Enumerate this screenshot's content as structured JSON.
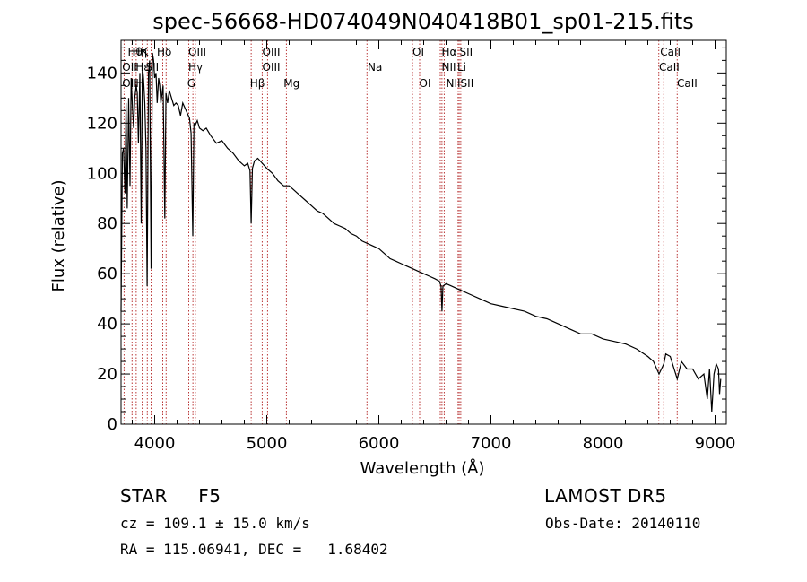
{
  "chart_data": {
    "type": "line",
    "title": "spec-56668-HD074049N040418B01_sp01-215.fits",
    "xlabel": "Wavelength (Å)",
    "ylabel": "Flux (relative)",
    "xlim": [
      3700,
      9100
    ],
    "ylim": [
      0,
      153
    ],
    "x_ticks": [
      4000,
      5000,
      6000,
      7000,
      8000,
      9000
    ],
    "x_tick_labels": [
      "4000",
      "5000",
      "6000",
      "7000",
      "8000",
      "9000"
    ],
    "y_ticks": [
      0,
      20,
      40,
      60,
      80,
      100,
      120,
      140
    ],
    "y_tick_labels": [
      "0",
      "20",
      "40",
      "60",
      "80",
      "100",
      "120",
      "140"
    ],
    "grid": false,
    "series": [
      {
        "color": "#000000",
        "x": [
          3700,
          3712,
          3722,
          3735,
          3745,
          3755,
          3768,
          3780,
          3790,
          3800,
          3812,
          3822,
          3835,
          3845,
          3855,
          3868,
          3880,
          3890,
          3900,
          3912,
          3922,
          3933,
          3945,
          3955,
          3968,
          3980,
          3990,
          4000,
          4012,
          4022,
          4035,
          4045,
          4055,
          4075,
          4090,
          4101,
          4115,
          4130,
          4150,
          4170,
          4190,
          4210,
          4230,
          4250,
          4270,
          4290,
          4310,
          4325,
          4340,
          4350,
          4360,
          4380,
          4400,
          4430,
          4460,
          4500,
          4550,
          4600,
          4650,
          4700,
          4750,
          4800,
          4830,
          4850,
          4861,
          4872,
          4890,
          4920,
          4960,
          5000,
          5050,
          5100,
          5150,
          5200,
          5250,
          5300,
          5350,
          5400,
          5450,
          5500,
          5550,
          5600,
          5650,
          5700,
          5750,
          5800,
          5850,
          5900,
          5950,
          6000,
          6050,
          6100,
          6150,
          6200,
          6250,
          6300,
          6350,
          6400,
          6450,
          6500,
          6540,
          6555,
          6563,
          6572,
          6600,
          6650,
          6700,
          6750,
          6800,
          6900,
          7000,
          7100,
          7200,
          7300,
          7400,
          7500,
          7600,
          7700,
          7800,
          7900,
          8000,
          8100,
          8200,
          8300,
          8400,
          8450,
          8500,
          8542,
          8560,
          8600,
          8662,
          8700,
          8750,
          8800,
          8850,
          8900,
          8930,
          8950,
          8970,
          8990,
          9010,
          9030,
          9040,
          9050
        ],
        "y": [
          45,
          108,
          110,
          92,
          128,
          86,
          130,
          95,
          138,
          128,
          118,
          130,
          135,
          132,
          112,
          140,
          80,
          143,
          138,
          128,
          110,
          55,
          140,
          145,
          62,
          148,
          145,
          138,
          140,
          128,
          138,
          135,
          128,
          135,
          82,
          132,
          128,
          133,
          130,
          127,
          128,
          127,
          123,
          128,
          126,
          124,
          122,
          116,
          75,
          120,
          119,
          121,
          118,
          117,
          118,
          115,
          112,
          113,
          110,
          108,
          105,
          103,
          104,
          101,
          80,
          102,
          105,
          106,
          104,
          102,
          100,
          97,
          95,
          95,
          93,
          91,
          89,
          87,
          85,
          84,
          82,
          80,
          79,
          78,
          76,
          75,
          73,
          72,
          71,
          70,
          68,
          66,
          65,
          64,
          63,
          62,
          61,
          60,
          59,
          58,
          57,
          55,
          45,
          55,
          56,
          55,
          54,
          53,
          52,
          50,
          48,
          47,
          46,
          45,
          43,
          42,
          40,
          38,
          36,
          36,
          34,
          33,
          32,
          30,
          27,
          25,
          20,
          24,
          28,
          27,
          18,
          25,
          22,
          22,
          18,
          20,
          10,
          22,
          5,
          20,
          24,
          22,
          12,
          18
        ]
      }
    ],
    "lines": [
      {
        "x": 3727,
        "label": "OII"
      },
      {
        "x": 3798,
        "label": "Hθ"
      },
      {
        "x": 3835,
        "label": "Hη"
      },
      {
        "x": 3889,
        "label": "Hζ"
      },
      {
        "x": 3934,
        "label": "K"
      },
      {
        "x": 3969,
        "label": "H"
      },
      {
        "x": 3970,
        "label": "Hε"
      },
      {
        "x": 4102,
        "label": "Hδ"
      },
      {
        "x": 4072,
        "label": "SII"
      },
      {
        "x": 4304,
        "label": "G"
      },
      {
        "x": 4341,
        "label": "Hγ"
      },
      {
        "x": 4363,
        "label": "OIII"
      },
      {
        "x": 4861,
        "label": "Hβ"
      },
      {
        "x": 4959,
        "label": "OIII"
      },
      {
        "x": 5007,
        "label": "OIII"
      },
      {
        "x": 5175,
        "label": "Mg"
      },
      {
        "x": 5894,
        "label": "Na"
      },
      {
        "x": 6300,
        "label": "OI"
      },
      {
        "x": 6364,
        "label": "OI"
      },
      {
        "x": 6548,
        "label": "NII"
      },
      {
        "x": 6563,
        "label": "Hα"
      },
      {
        "x": 6583,
        "label": "NII"
      },
      {
        "x": 6707,
        "label": "Li"
      },
      {
        "x": 6717,
        "label": "SII"
      },
      {
        "x": 6731,
        "label": "SII"
      },
      {
        "x": 8498,
        "label": "CaII"
      },
      {
        "x": 8542,
        "label": "CaII"
      },
      {
        "x": 8662,
        "label": "CaII"
      }
    ],
    "line_label_rows": [
      {
        "row": 1,
        "items": [
          {
            "x": 3760,
            "label": "Hθ"
          },
          {
            "x": 3800,
            "label": "Hη"
          },
          {
            "x": 3880,
            "label": "K"
          },
          {
            "x": 4020,
            "label": "Hδ"
          },
          {
            "x": 4300,
            "label": "OIII"
          },
          {
            "x": 4960,
            "label": "OIII"
          },
          {
            "x": 6300,
            "label": "OI"
          },
          {
            "x": 6560,
            "label": "Hα"
          },
          {
            "x": 6720,
            "label": "SII"
          },
          {
            "x": 8510,
            "label": "CaII"
          }
        ]
      },
      {
        "row": 2,
        "items": [
          {
            "x": 3710,
            "label": "OII"
          },
          {
            "x": 3830,
            "label": "Hε"
          },
          {
            "x": 3920,
            "label": "SII"
          },
          {
            "x": 4300,
            "label": "Hγ"
          },
          {
            "x": 4960,
            "label": "OIII"
          },
          {
            "x": 5900,
            "label": "Na"
          },
          {
            "x": 6560,
            "label": "NII"
          },
          {
            "x": 6700,
            "label": "Li"
          },
          {
            "x": 8500,
            "label": "CaII"
          }
        ]
      },
      {
        "row": 3,
        "items": [
          {
            "x": 3710,
            "label": "OII"
          },
          {
            "x": 3830,
            "label": "H"
          },
          {
            "x": 4290,
            "label": "G"
          },
          {
            "x": 4850,
            "label": "Hβ"
          },
          {
            "x": 5150,
            "label": "Mg"
          },
          {
            "x": 6360,
            "label": "OI"
          },
          {
            "x": 6600,
            "label": "NIISII"
          },
          {
            "x": 8660,
            "label": "CaII"
          }
        ]
      }
    ]
  },
  "info": {
    "class_line": "STAR     F5",
    "survey": "LAMOST DR5",
    "cz_line": "cz = 109.1 ± 15.0 km/s",
    "obs_date": "Obs-Date: 20140110",
    "coords": "RA = 115.06941, DEC =   1.68402"
  }
}
